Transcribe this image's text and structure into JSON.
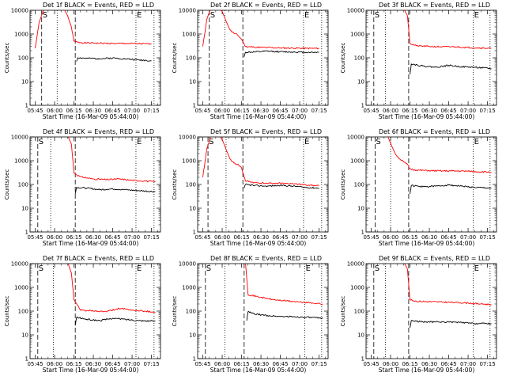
{
  "chart_data": [
    {
      "type": "line",
      "title": "Det 1f BLACK = Events, RED = LLD",
      "xlabel": "Start Time (16-Mar-09 05:44:00)",
      "ylabel": "Counts/sec",
      "yscale": "log",
      "ylim": [
        1,
        10000
      ],
      "x_ticks": [
        "05:45",
        "06:00",
        "06:15",
        "06:30",
        "06:45",
        "07:00",
        "07:15"
      ],
      "y_ticks": [
        "1",
        "10",
        "100",
        "1000",
        "10000"
      ],
      "markers": [
        {
          "time": "05:50",
          "style": "dashed",
          "label": "S"
        },
        {
          "time": "06:02",
          "style": "dotted"
        },
        {
          "time": "06:16",
          "style": "dashed"
        },
        {
          "time": "07:03",
          "style": "dotted",
          "label": "E"
        },
        {
          "time": "07:17",
          "style": "dotted"
        }
      ],
      "series": [
        {
          "color": "#ff0000",
          "x": [
            "05:45",
            "05:48",
            "05:51",
            "05:54",
            "05:56",
            "05:59",
            "06:03",
            "06:07",
            "06:10",
            "06:13",
            "06:15",
            "06:18",
            "06:25",
            "06:35",
            "06:45",
            "06:55",
            "07:05",
            "07:15"
          ],
          "y": [
            250,
            3000,
            9000,
            12000,
            12000,
            12000,
            12000,
            12000,
            6000,
            2000,
            500,
            450,
            420,
            410,
            400,
            400,
            390,
            380
          ]
        },
        {
          "color": "#000000",
          "x": [
            "06:17",
            "06:18",
            "06:25",
            "06:35",
            "06:45",
            "06:55",
            "07:05",
            "07:15"
          ],
          "y": [
            70,
            100,
            95,
            92,
            98,
            90,
            82,
            75
          ]
        }
      ]
    },
    {
      "type": "line",
      "title": "Det 2f BLACK = Events, RED = LLD",
      "xlabel": "Start Time (16-Mar-09 05:44:00)",
      "ylabel": "Counts/sec",
      "yscale": "log",
      "ylim": [
        1,
        10000
      ],
      "x_ticks": [
        "05:45",
        "06:00",
        "06:15",
        "06:30",
        "06:45",
        "07:00",
        "07:15"
      ],
      "y_ticks": [
        "1",
        "10",
        "100",
        "1000",
        "10000"
      ],
      "markers": [
        {
          "time": "05:50",
          "style": "dashed",
          "label": "S"
        },
        {
          "time": "06:02",
          "style": "dotted"
        },
        {
          "time": "06:16",
          "style": "dashed"
        },
        {
          "time": "07:03",
          "style": "dotted",
          "label": "E"
        },
        {
          "time": "07:17",
          "style": "dotted"
        }
      ],
      "series": [
        {
          "color": "#ff0000",
          "x": [
            "05:45",
            "05:48",
            "05:51",
            "05:54",
            "05:57",
            "06:00",
            "06:03",
            "06:06",
            "06:09",
            "06:12",
            "06:15",
            "06:18",
            "06:25",
            "06:35",
            "06:45",
            "06:55",
            "07:05",
            "07:15"
          ],
          "y": [
            300,
            4000,
            12000,
            12000,
            12000,
            9000,
            3500,
            1500,
            1100,
            900,
            600,
            300,
            280,
            270,
            260,
            255,
            250,
            250
          ]
        },
        {
          "color": "#000000",
          "x": [
            "06:17",
            "06:18",
            "06:25",
            "06:35",
            "06:45",
            "06:55",
            "07:05",
            "07:15"
          ],
          "y": [
            110,
            170,
            175,
            190,
            180,
            175,
            170,
            170
          ]
        }
      ]
    },
    {
      "type": "line",
      "title": "Det 3f BLACK = Events, RED = LLD",
      "xlabel": "Start Time (16-Mar-09 05:44:00)",
      "ylabel": "Counts/sec",
      "yscale": "log",
      "ylim": [
        1,
        10000
      ],
      "x_ticks": [
        "05:45",
        "06:00",
        "06:15",
        "06:30",
        "06:45",
        "07:00",
        "07:15"
      ],
      "y_ticks": [
        "1",
        "10",
        "100",
        "1000",
        "10000"
      ],
      "markers": [
        {
          "time": "05:47",
          "style": "dashed",
          "label": "S"
        },
        {
          "time": "05:56",
          "style": "dotted"
        },
        {
          "time": "06:14",
          "style": "dashed"
        },
        {
          "time": "07:04",
          "style": "dotted",
          "label": "E"
        },
        {
          "time": "07:17",
          "style": "dotted"
        }
      ],
      "series": [
        {
          "color": "#ff0000",
          "x": [
            "05:45",
            "05:48",
            "05:51",
            "05:55",
            "06:00",
            "06:05",
            "06:10",
            "06:13",
            "06:15",
            "06:20",
            "06:30",
            "06:40",
            "06:50",
            "07:00",
            "07:10",
            "07:18"
          ],
          "y": [
            12000,
            12000,
            12000,
            12000,
            12000,
            12000,
            12000,
            6000,
            400,
            320,
            300,
            290,
            290,
            270,
            260,
            250
          ]
        },
        {
          "color": "#000000",
          "x": [
            "06:15",
            "06:16",
            "06:25",
            "06:35",
            "06:45",
            "06:55",
            "07:05",
            "07:18"
          ],
          "y": [
            20,
            55,
            45,
            40,
            48,
            42,
            40,
            35
          ]
        }
      ]
    },
    {
      "type": "line",
      "title": "Det 4f BLACK = Events, RED = LLD",
      "xlabel": "Start Time (16-Mar-09 05:44:00)",
      "ylabel": "Counts/sec",
      "yscale": "log",
      "ylim": [
        1,
        10000
      ],
      "x_ticks": [
        "05:45",
        "06:00",
        "06:15",
        "06:30",
        "06:45",
        "07:00",
        "07:15"
      ],
      "y_ticks": [
        "1",
        "10",
        "100",
        "1000",
        "10000"
      ],
      "markers": [
        {
          "time": "05:47",
          "style": "dashed",
          "label": "S"
        },
        {
          "time": "05:57",
          "style": "dotted"
        },
        {
          "time": "06:16",
          "style": "dashed"
        },
        {
          "time": "07:03",
          "style": "dotted",
          "label": "E"
        },
        {
          "time": "07:17",
          "style": "dotted"
        }
      ],
      "series": [
        {
          "color": "#ff0000",
          "x": [
            "05:45",
            "05:48",
            "05:52",
            "05:56",
            "06:00",
            "06:05",
            "06:10",
            "06:13",
            "06:15",
            "06:20",
            "06:30",
            "06:40",
            "06:50",
            "07:00",
            "07:10",
            "07:18"
          ],
          "y": [
            12000,
            12000,
            12000,
            12000,
            12000,
            12000,
            12000,
            5000,
            300,
            210,
            170,
            160,
            170,
            150,
            140,
            130
          ]
        },
        {
          "color": "#000000",
          "x": [
            "06:16",
            "06:17",
            "06:25",
            "06:35",
            "06:45",
            "06:55",
            "07:05",
            "07:18"
          ],
          "y": [
            40,
            75,
            70,
            60,
            65,
            60,
            55,
            50
          ]
        }
      ]
    },
    {
      "type": "line",
      "title": "Det 5f BLACK = Events, RED = LLD",
      "xlabel": "Start Time (16-Mar-09 05:44:00)",
      "ylabel": "Counts/sec",
      "yscale": "log",
      "ylim": [
        1,
        10000
      ],
      "x_ticks": [
        "05:45",
        "06:00",
        "06:15",
        "06:30",
        "06:45",
        "07:00",
        "07:15"
      ],
      "y_ticks": [
        "1",
        "10",
        "100",
        "1000",
        "10000"
      ],
      "markers": [
        {
          "time": "05:49",
          "style": "dashed",
          "label": "S"
        },
        {
          "time": "06:03",
          "style": "dotted"
        },
        {
          "time": "06:16",
          "style": "dashed"
        },
        {
          "time": "07:03",
          "style": "dotted",
          "label": "E"
        },
        {
          "time": "07:17",
          "style": "dotted"
        }
      ],
      "series": [
        {
          "color": "#ff0000",
          "x": [
            "05:45",
            "05:48",
            "05:51",
            "05:54",
            "05:57",
            "06:00",
            "06:03",
            "06:06",
            "06:09",
            "06:12",
            "06:15",
            "06:18",
            "06:25",
            "06:35",
            "06:45",
            "06:55",
            "07:05",
            "07:15"
          ],
          "y": [
            200,
            3000,
            10000,
            12000,
            12000,
            8000,
            3000,
            1200,
            800,
            700,
            500,
            140,
            120,
            110,
            115,
            105,
            95,
            90
          ]
        },
        {
          "color": "#000000",
          "x": [
            "06:17",
            "06:18",
            "06:25",
            "06:35",
            "06:45",
            "06:55",
            "07:05",
            "07:15"
          ],
          "y": [
            70,
            100,
            90,
            85,
            92,
            85,
            75,
            70
          ]
        }
      ]
    },
    {
      "type": "line",
      "title": "Det 6f BLACK = Events, RED = LLD",
      "xlabel": "Start Time (16-Mar-09 05:44:00)",
      "ylabel": "Counts/sec",
      "yscale": "log",
      "ylim": [
        1,
        10000
      ],
      "x_ticks": [
        "05:45",
        "06:00",
        "06:15",
        "06:30",
        "06:45",
        "07:00",
        "07:15"
      ],
      "y_ticks": [
        "1",
        "10",
        "100",
        "1000",
        "10000"
      ],
      "markers": [
        {
          "time": "05:48",
          "style": "dashed",
          "label": "S"
        },
        {
          "time": "06:00",
          "style": "dotted"
        },
        {
          "time": "06:14",
          "style": "dashed"
        },
        {
          "time": "07:04",
          "style": "dotted",
          "label": "E"
        },
        {
          "time": "07:17",
          "style": "dotted"
        }
      ],
      "series": [
        {
          "color": "#ff0000",
          "x": [
            "05:45",
            "05:48",
            "05:51",
            "05:55",
            "05:58",
            "06:01",
            "06:04",
            "06:07",
            "06:10",
            "06:13",
            "06:15",
            "06:20",
            "06:30",
            "06:40",
            "06:50",
            "07:00",
            "07:10",
            "07:18"
          ],
          "y": [
            12000,
            12000,
            12000,
            12000,
            10000,
            4000,
            1800,
            1200,
            900,
            700,
            450,
            400,
            380,
            370,
            370,
            360,
            340,
            330
          ]
        },
        {
          "color": "#000000",
          "x": [
            "06:15",
            "06:16",
            "06:25",
            "06:35",
            "06:45",
            "06:55",
            "07:05",
            "07:18"
          ],
          "y": [
            40,
            90,
            80,
            85,
            95,
            85,
            75,
            70
          ]
        }
      ]
    },
    {
      "type": "line",
      "title": "Det 7f BLACK = Events, RED = LLD",
      "xlabel": "Start Time (16-Mar-09 05:44:00)",
      "ylabel": "Counts/sec",
      "yscale": "log",
      "ylim": [
        1,
        10000
      ],
      "x_ticks": [
        "05:45",
        "06:00",
        "06:15",
        "06:30",
        "06:45",
        "07:00",
        "07:15"
      ],
      "y_ticks": [
        "1",
        "10",
        "100",
        "1000",
        "10000"
      ],
      "markers": [
        {
          "time": "05:47",
          "style": "dashed",
          "label": "S"
        },
        {
          "time": "05:59",
          "style": "dotted"
        },
        {
          "time": "06:16",
          "style": "dashed"
        },
        {
          "time": "07:03",
          "style": "dotted",
          "label": "E"
        },
        {
          "time": "07:17",
          "style": "dotted"
        }
      ],
      "series": [
        {
          "color": "#ff0000",
          "x": [
            "05:45",
            "05:48",
            "05:52",
            "05:56",
            "06:00",
            "06:05",
            "06:10",
            "06:13",
            "06:15",
            "06:20",
            "06:30",
            "06:40",
            "06:50",
            "07:00",
            "07:10",
            "07:18"
          ],
          "y": [
            12000,
            12000,
            12000,
            12000,
            12000,
            12000,
            12000,
            4000,
            300,
            110,
            100,
            95,
            130,
            110,
            100,
            90
          ]
        },
        {
          "color": "#000000",
          "x": [
            "06:16",
            "06:17",
            "06:25",
            "06:35",
            "06:45",
            "06:55",
            "07:05",
            "07:18"
          ],
          "y": [
            25,
            55,
            45,
            40,
            50,
            45,
            40,
            38
          ]
        }
      ]
    },
    {
      "type": "line",
      "title": "Det 8f BLACK = Events, RED = LLD",
      "xlabel": "Start Time (16-Mar-09 05:44:00)",
      "ylabel": "Counts/sec",
      "yscale": "log",
      "ylim": [
        1,
        10000
      ],
      "x_ticks": [
        "05:45",
        "06:00",
        "06:15",
        "06:30",
        "06:45",
        "07:00",
        "07:15"
      ],
      "y_ticks": [
        "1",
        "10",
        "100",
        "1000",
        "10000"
      ],
      "markers": [
        {
          "time": "05:47",
          "style": "dashed",
          "label": "S"
        },
        {
          "time": "06:02",
          "style": "dotted"
        },
        {
          "time": "06:17",
          "style": "dashed"
        },
        {
          "time": "07:04",
          "style": "dotted",
          "label": "E"
        },
        {
          "time": "07:17",
          "style": "dotted"
        }
      ],
      "series": [
        {
          "color": "#ff0000",
          "x": [
            "05:45",
            "05:48",
            "05:52",
            "05:56",
            "06:00",
            "06:05",
            "06:10",
            "06:15",
            "06:18",
            "06:20",
            "06:30",
            "06:40",
            "06:50",
            "07:00",
            "07:10",
            "07:18"
          ],
          "y": [
            12000,
            12000,
            12000,
            12000,
            12000,
            12000,
            12000,
            12000,
            12000,
            500,
            380,
            300,
            270,
            240,
            220,
            200
          ]
        },
        {
          "color": "#000000",
          "x": [
            "06:19",
            "06:20",
            "06:25",
            "06:35",
            "06:45",
            "06:55",
            "07:05",
            "07:18"
          ],
          "y": [
            40,
            95,
            75,
            65,
            60,
            58,
            55,
            50
          ]
        }
      ]
    },
    {
      "type": "line",
      "title": "Det 9f BLACK = Events, RED = LLD",
      "xlabel": "Start Time (16-Mar-09 05:44:00)",
      "ylabel": "Counts/sec",
      "yscale": "log",
      "ylim": [
        1,
        10000
      ],
      "x_ticks": [
        "05:45",
        "06:00",
        "06:15",
        "06:30",
        "06:45",
        "07:00",
        "07:15"
      ],
      "y_ticks": [
        "1",
        "10",
        "100",
        "1000",
        "10000"
      ],
      "markers": [
        {
          "time": "05:47",
          "style": "dashed",
          "label": "S"
        },
        {
          "time": "05:56",
          "style": "dotted"
        },
        {
          "time": "06:14",
          "style": "dashed"
        },
        {
          "time": "07:04",
          "style": "dotted",
          "label": "E"
        },
        {
          "time": "07:17",
          "style": "dotted"
        }
      ],
      "series": [
        {
          "color": "#ff0000",
          "x": [
            "05:45",
            "05:48",
            "05:51",
            "05:55",
            "06:00",
            "06:05",
            "06:10",
            "06:13",
            "06:15",
            "06:20",
            "06:30",
            "06:40",
            "06:50",
            "07:00",
            "07:10",
            "07:18"
          ],
          "y": [
            12000,
            12000,
            12000,
            12000,
            12000,
            12000,
            12000,
            6000,
            300,
            260,
            250,
            240,
            230,
            220,
            200,
            190
          ]
        },
        {
          "color": "#000000",
          "x": [
            "06:15",
            "06:16",
            "06:25",
            "06:35",
            "06:45",
            "06:55",
            "07:05",
            "07:18"
          ],
          "y": [
            20,
            40,
            35,
            35,
            35,
            33,
            30,
            30
          ]
        }
      ]
    }
  ]
}
